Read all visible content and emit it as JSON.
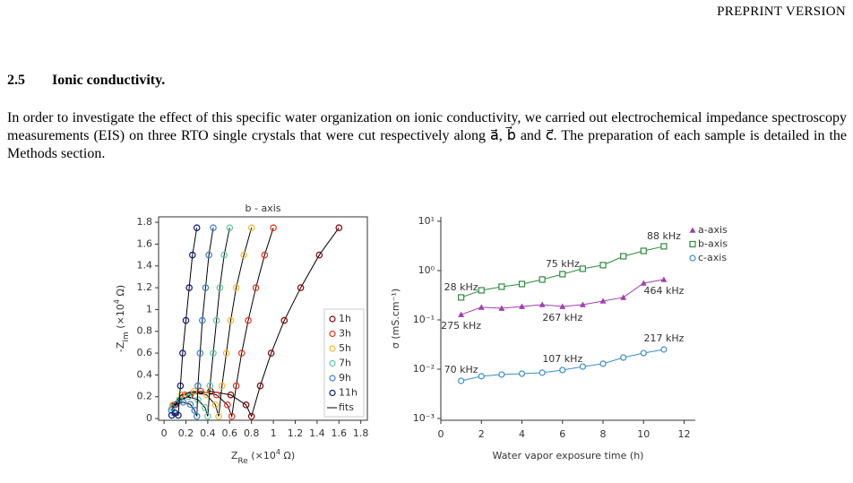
{
  "header": "PREPRINT VERSION",
  "section": {
    "number": "2.5",
    "title": "Ionic conductivity."
  },
  "paragraph": "In order to investigate the effect of this specific water organization on ionic conductivity, we carried out electrochemical impedance spectroscopy measurements (EIS) on three RTO single crystals that were cut respectively along a⃗, b⃗ and c⃗. The preparation of each sample is detailed in the Methods section.",
  "chart_data": [
    {
      "type": "scatter",
      "title": "b - axis",
      "x_label": [
        {
          "text": "Z"
        },
        {
          "text": "Re",
          "sub": true
        },
        {
          "text": " (×10"
        },
        {
          "text": "4",
          "sup": true
        },
        {
          "text": " Ω)"
        }
      ],
      "y_label": [
        {
          "text": "-Z"
        },
        {
          "text": "Im",
          "sub": true
        },
        {
          "text": " (×10"
        },
        {
          "text": "4",
          "sup": true
        },
        {
          "text": " Ω)"
        }
      ],
      "xlim": [
        -0.05,
        1.86
      ],
      "ylim": [
        -0.016,
        1.85
      ],
      "xticks": [
        0,
        0.2,
        0.4,
        0.6,
        0.8,
        1,
        1.2,
        1.4,
        1.6,
        1.8
      ],
      "yticks": [
        0,
        0.2,
        0.4,
        0.6,
        0.8,
        1,
        1.2,
        1.4,
        1.6,
        1.8
      ],
      "fit_label": "fits",
      "fit_color": "#000000",
      "series": [
        {
          "name": "1h",
          "color": "#8b0000",
          "x": [
            0.1,
            0.24,
            0.425,
            0.61,
            0.75,
            0.8,
            0.88,
            0.98,
            1.1,
            1.25,
            1.42,
            1.6
          ],
          "values": [
            0.125,
            0.217,
            0.25,
            0.217,
            0.125,
            0.02,
            0.3,
            0.6,
            0.9,
            1.2,
            1.5,
            1.75
          ]
        },
        {
          "name": "3h",
          "color": "#e8301c",
          "x": [
            0.088,
            0.19,
            0.335,
            0.48,
            0.58,
            0.62,
            0.66,
            0.71,
            0.77,
            0.84,
            0.92,
            1.0
          ],
          "values": [
            0.125,
            0.217,
            0.25,
            0.217,
            0.125,
            0.02,
            0.3,
            0.6,
            0.9,
            1.2,
            1.5,
            1.75
          ]
        },
        {
          "name": "5h",
          "color": "#f5b830",
          "x": [
            0.08,
            0.16,
            0.275,
            0.39,
            0.47,
            0.5,
            0.53,
            0.57,
            0.61,
            0.66,
            0.73,
            0.8
          ],
          "values": [
            0.125,
            0.217,
            0.25,
            0.217,
            0.125,
            0.02,
            0.3,
            0.6,
            0.9,
            1.2,
            1.5,
            1.75
          ]
        },
        {
          "name": "7h",
          "color": "#5cc8a0",
          "x": [
            0.073,
            0.14,
            0.225,
            0.31,
            0.375,
            0.4,
            0.42,
            0.45,
            0.48,
            0.51,
            0.55,
            0.6
          ],
          "values": [
            0.1,
            0.173,
            0.2,
            0.173,
            0.1,
            0.02,
            0.3,
            0.6,
            0.9,
            1.2,
            1.5,
            1.75
          ]
        },
        {
          "name": "9h",
          "color": "#3a7fd0",
          "x": [
            0.067,
            0.11,
            0.175,
            0.24,
            0.28,
            0.3,
            0.31,
            0.33,
            0.35,
            0.38,
            0.41,
            0.45
          ],
          "values": [
            0.075,
            0.13,
            0.15,
            0.13,
            0.075,
            0.02,
            0.3,
            0.6,
            0.9,
            1.2,
            1.5,
            1.75
          ]
        },
        {
          "name": "11h",
          "color": "#0b1a7a",
          "x": [
            0.07,
            0.1,
            0.13,
            0.15,
            0.17,
            0.2,
            0.23,
            0.26,
            0.3
          ],
          "values": [
            0.03,
            0.05,
            0.03,
            0.3,
            0.6,
            0.9,
            1.2,
            1.5,
            1.75
          ]
        }
      ]
    },
    {
      "type": "line",
      "x_label": "Water vapor exposure time (h)",
      "y_label": "σ (mS.cm⁻¹)",
      "log_y": true,
      "xlim": [
        0,
        12.55
      ],
      "ylim": [
        0.00092,
        12.3
      ],
      "xticks": [
        0,
        2,
        4,
        6,
        8,
        10,
        12
      ],
      "yticks": [
        {
          "value": 10,
          "label": "10¹"
        },
        {
          "value": 1,
          "label": "10⁰"
        },
        {
          "value": 0.1,
          "label": "10⁻¹"
        },
        {
          "value": 0.01,
          "label": "10⁻²"
        },
        {
          "value": 0.001,
          "label": "10⁻³"
        }
      ],
      "legend": "outside-top-right",
      "series": [
        {
          "name": "a-axis",
          "color": "#a040b0",
          "marker": "triangle",
          "x": [
            1,
            2,
            3,
            4,
            5,
            6,
            7,
            8,
            9,
            10,
            11
          ],
          "values": [
            0.128,
            0.18,
            0.172,
            0.187,
            0.204,
            0.187,
            0.204,
            0.241,
            0.285,
            0.556,
            0.658
          ],
          "annotations": [
            "275 kHz",
            null,
            null,
            null,
            null,
            "267 kHz",
            null,
            null,
            null,
            null,
            "464 kHz"
          ]
        },
        {
          "name": "b-axis",
          "color": "#2e8b3e",
          "marker": "square",
          "x": [
            1,
            2,
            3,
            4,
            5,
            6,
            7,
            8,
            9,
            10,
            11
          ],
          "values": [
            0.285,
            0.398,
            0.471,
            0.534,
            0.658,
            0.846,
            1.09,
            1.29,
            1.95,
            2.51,
            3.1
          ],
          "annotations": [
            "28 kHz",
            null,
            null,
            null,
            null,
            "75 kHz",
            null,
            null,
            null,
            null,
            "88 kHz"
          ]
        },
        {
          "name": "c-axis",
          "color": "#3a8fc8",
          "marker": "circle",
          "x": [
            1,
            2,
            3,
            4,
            5,
            6,
            7,
            8,
            9,
            10,
            11
          ],
          "values": [
            0.0058,
            0.0072,
            0.0078,
            0.0081,
            0.0085,
            0.0096,
            0.0113,
            0.0129,
            0.0172,
            0.0212,
            0.0251
          ],
          "annotations": [
            "70 kHz",
            null,
            null,
            null,
            null,
            "107 kHz",
            null,
            null,
            null,
            null,
            "217 kHz"
          ]
        }
      ]
    }
  ]
}
